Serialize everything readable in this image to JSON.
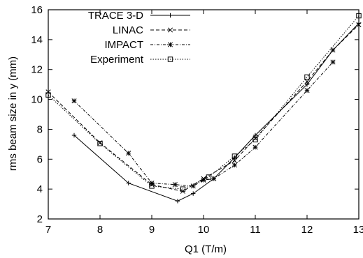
{
  "chart_data": {
    "type": "line",
    "xlabel": "Q1  (T/m)",
    "ylabel": "rms beam size in y  (mm)",
    "xlim": [
      7,
      13
    ],
    "ylim": [
      2,
      16
    ],
    "xticks": [
      7,
      8,
      9,
      10,
      11,
      12,
      13
    ],
    "yticks": [
      2,
      4,
      6,
      8,
      10,
      12,
      14,
      16
    ],
    "legend_position": "top-left",
    "grid": false,
    "series": [
      {
        "name": "TRACE 3-D",
        "line": "solid",
        "marker": "plus",
        "x": [
          7.5,
          8.55,
          9.5,
          9.8,
          10.2,
          10.6,
          11.0,
          12.0,
          12.5,
          13.0
        ],
        "y": [
          7.6,
          4.4,
          3.2,
          3.7,
          4.7,
          6.1,
          7.6,
          11.0,
          13.3,
          15.1
        ]
      },
      {
        "name": "LINAC",
        "line": "dashed",
        "marker": "x",
        "x": [
          7.0,
          8.0,
          9.0,
          9.6,
          10.0,
          10.6,
          11.0,
          12.0,
          12.5,
          13.0
        ],
        "y": [
          10.5,
          7.1,
          4.3,
          3.85,
          4.7,
          5.9,
          7.4,
          11.2,
          13.3,
          15.0
        ]
      },
      {
        "name": "IMPACT",
        "line": "dotted-dash",
        "marker": "star",
        "x": [
          7.5,
          8.55,
          9.0,
          9.45,
          9.8,
          10.0,
          10.2,
          10.6,
          11.0,
          12.0,
          12.5
        ],
        "y": [
          9.9,
          6.4,
          4.4,
          4.3,
          4.2,
          4.6,
          4.7,
          5.6,
          6.8,
          10.6,
          12.5
        ]
      },
      {
        "name": "Experiment",
        "line": "dotted",
        "marker": "square",
        "x": [
          7.0,
          8.0,
          9.0,
          9.6,
          10.1,
          10.6,
          11.0,
          12.0,
          13.0
        ],
        "y": [
          10.3,
          7.05,
          4.2,
          4.0,
          4.8,
          6.2,
          7.3,
          11.5,
          15.6
        ]
      }
    ]
  }
}
